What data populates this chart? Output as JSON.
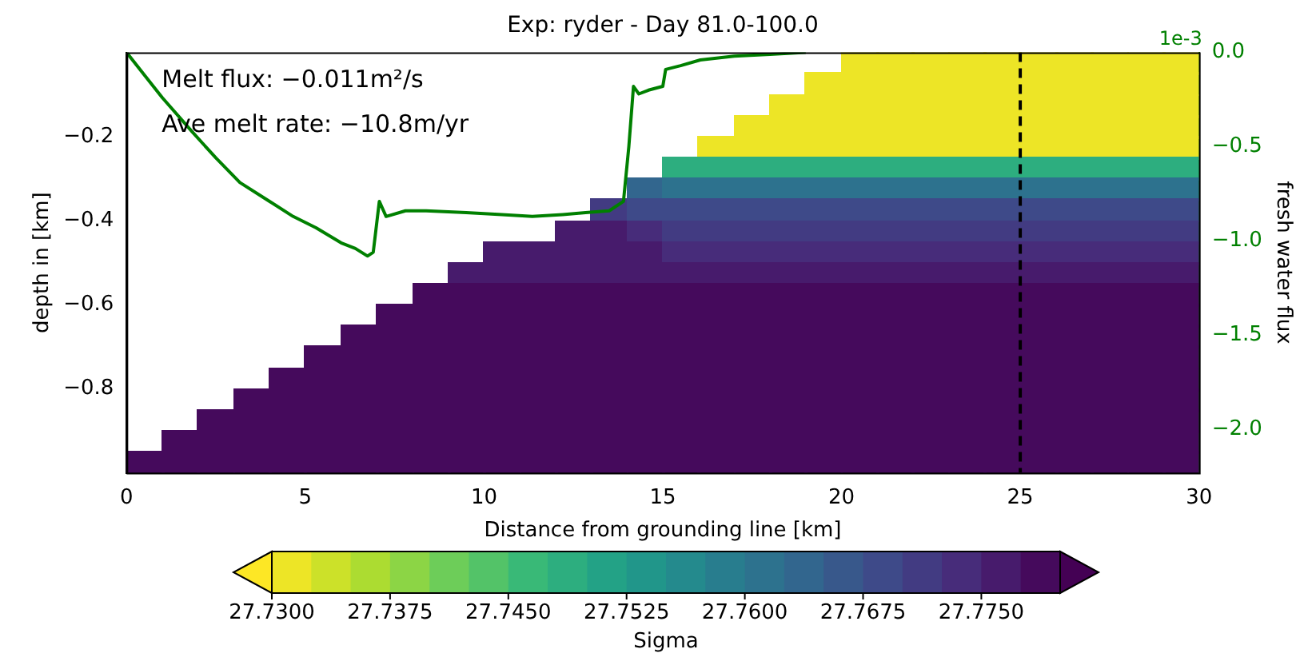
{
  "chart_data": {
    "type": "heatmap",
    "title": "Exp: ryder - Day 81.0-100.0",
    "xlabel": "Distance from grounding line [km]",
    "ylabel": "depth in [km]",
    "y2label": "fresh water flux",
    "clabel": "Sigma",
    "annotations": [
      "Melt flux: −0.011m²/s",
      "Ave melt rate: −10.8m/yr",
      "1e-3"
    ],
    "xlim": [
      0,
      30
    ],
    "xticks": [
      0,
      5,
      10,
      15,
      20,
      25,
      30
    ],
    "ylim": [
      -1.0,
      0
    ],
    "yticks": [
      {
        "value": -0.2,
        "label": "−0.2"
      },
      {
        "value": -0.4,
        "label": "−0.4"
      },
      {
        "value": -0.6,
        "label": "−0.6"
      },
      {
        "value": -0.8,
        "label": "−0.8"
      }
    ],
    "y2lim": [
      -2.23,
      0.0
    ],
    "y2ticks": [
      {
        "value": 0,
        "label": "0.0"
      },
      {
        "value": -0.5,
        "label": "−0.5"
      },
      {
        "value": -1.0,
        "label": "−1.0"
      },
      {
        "value": -1.5,
        "label": "−1.5"
      },
      {
        "value": -2.0,
        "label": "−2.0"
      }
    ],
    "clim": [
      27.73,
      27.78
    ],
    "cticks": [
      {
        "value": 27.73,
        "label": "27.7300"
      },
      {
        "value": 27.7375,
        "label": "27.7375"
      },
      {
        "value": 27.745,
        "label": "27.7450"
      },
      {
        "value": 27.7525,
        "label": "27.7525"
      },
      {
        "value": 27.76,
        "label": "27.7600"
      },
      {
        "value": 27.7675,
        "label": "27.7675"
      },
      {
        "value": 27.775,
        "label": "27.7750"
      }
    ],
    "cells": [
      [
        null,
        null,
        null,
        null,
        null,
        null,
        null,
        null,
        null,
        null,
        null,
        null,
        null,
        null,
        null,
        null,
        null,
        null,
        null,
        null,
        27.73,
        27.73,
        27.73,
        27.73,
        27.73,
        27.73,
        27.73,
        27.73,
        27.73,
        27.73
      ],
      [
        null,
        null,
        null,
        null,
        null,
        null,
        null,
        null,
        null,
        null,
        null,
        null,
        null,
        null,
        null,
        null,
        null,
        null,
        null,
        27.73,
        27.73,
        27.73,
        27.73,
        27.73,
        27.73,
        27.73,
        27.73,
        27.73,
        27.73,
        27.73
      ],
      [
        null,
        null,
        null,
        null,
        null,
        null,
        null,
        null,
        null,
        null,
        null,
        null,
        null,
        null,
        null,
        null,
        null,
        null,
        27.73,
        27.73,
        27.73,
        27.73,
        27.73,
        27.73,
        27.73,
        27.73,
        27.73,
        27.73,
        27.73,
        27.73
      ],
      [
        null,
        null,
        null,
        null,
        null,
        null,
        null,
        null,
        null,
        null,
        null,
        null,
        null,
        null,
        null,
        null,
        null,
        27.73,
        27.73,
        27.73,
        27.73,
        27.73,
        27.73,
        27.73,
        27.73,
        27.73,
        27.73,
        27.73,
        27.73,
        27.73
      ],
      [
        null,
        null,
        null,
        null,
        null,
        null,
        null,
        null,
        null,
        null,
        null,
        null,
        null,
        null,
        null,
        null,
        27.73,
        27.73,
        27.73,
        27.73,
        27.73,
        27.73,
        27.73,
        27.73,
        27.73,
        27.73,
        27.73,
        27.73,
        27.73,
        27.73
      ],
      [
        null,
        null,
        null,
        null,
        null,
        null,
        null,
        null,
        null,
        null,
        null,
        null,
        null,
        null,
        null,
        27.75,
        27.75,
        27.75,
        27.75,
        27.75,
        27.75,
        27.75,
        27.75,
        27.75,
        27.75,
        27.75,
        27.75,
        27.75,
        27.75,
        27.75
      ],
      [
        null,
        null,
        null,
        null,
        null,
        null,
        null,
        null,
        null,
        null,
        null,
        null,
        null,
        null,
        27.765,
        27.76,
        27.76,
        27.76,
        27.76,
        27.76,
        27.76,
        27.76,
        27.76,
        27.76,
        27.76,
        27.76,
        27.76,
        27.76,
        27.76,
        27.76
      ],
      [
        null,
        null,
        null,
        null,
        null,
        null,
        null,
        null,
        null,
        null,
        null,
        null,
        null,
        27.772,
        27.77,
        27.768,
        27.768,
        27.768,
        27.768,
        27.768,
        27.768,
        27.768,
        27.768,
        27.768,
        27.768,
        27.768,
        27.768,
        27.768,
        27.768,
        27.768
      ],
      [
        null,
        null,
        null,
        null,
        null,
        null,
        null,
        null,
        null,
        null,
        null,
        null,
        27.777,
        27.776,
        27.774,
        27.772,
        27.772,
        27.772,
        27.772,
        27.772,
        27.772,
        27.772,
        27.772,
        27.772,
        27.772,
        27.772,
        27.772,
        27.772,
        27.772,
        27.772
      ],
      [
        null,
        null,
        null,
        null,
        null,
        null,
        null,
        null,
        null,
        null,
        27.777,
        27.777,
        27.777,
        27.777,
        27.777,
        27.775,
        27.775,
        27.775,
        27.775,
        27.775,
        27.775,
        27.775,
        27.775,
        27.775,
        27.775,
        27.775,
        27.775,
        27.775,
        27.775,
        27.775
      ],
      [
        null,
        null,
        null,
        null,
        null,
        null,
        null,
        null,
        null,
        27.777,
        27.777,
        27.777,
        27.777,
        27.777,
        27.777,
        27.777,
        27.777,
        27.777,
        27.777,
        27.777,
        27.777,
        27.777,
        27.777,
        27.777,
        27.777,
        27.777,
        27.777,
        27.777,
        27.777,
        27.777
      ],
      [
        null,
        null,
        null,
        null,
        null,
        null,
        null,
        null,
        27.779,
        27.779,
        27.779,
        27.779,
        27.779,
        27.779,
        27.779,
        27.778,
        27.778,
        27.778,
        27.778,
        27.778,
        27.778,
        27.778,
        27.778,
        27.778,
        27.778,
        27.778,
        27.778,
        27.778,
        27.778,
        27.778
      ],
      [
        null,
        null,
        null,
        null,
        null,
        null,
        null,
        27.779,
        27.779,
        27.779,
        27.779,
        27.779,
        27.779,
        27.779,
        27.779,
        27.779,
        27.779,
        27.779,
        27.779,
        27.779,
        27.779,
        27.779,
        27.779,
        27.779,
        27.779,
        27.779,
        27.779,
        27.779,
        27.779,
        27.779
      ],
      [
        null,
        null,
        null,
        null,
        null,
        null,
        27.779,
        27.779,
        27.779,
        27.779,
        27.779,
        27.779,
        27.779,
        27.779,
        27.779,
        27.779,
        27.779,
        27.779,
        27.779,
        27.779,
        27.779,
        27.779,
        27.779,
        27.779,
        27.779,
        27.779,
        27.779,
        27.779,
        27.779,
        27.779
      ],
      [
        null,
        null,
        null,
        null,
        null,
        27.779,
        27.779,
        27.779,
        27.779,
        27.779,
        27.779,
        27.779,
        27.779,
        27.779,
        27.779,
        27.779,
        27.779,
        27.779,
        27.779,
        27.779,
        27.779,
        27.779,
        27.779,
        27.779,
        27.779,
        27.779,
        27.779,
        27.779,
        27.779,
        27.779
      ],
      [
        null,
        null,
        null,
        null,
        27.779,
        27.779,
        27.779,
        27.779,
        27.779,
        27.779,
        27.779,
        27.779,
        27.779,
        27.779,
        27.779,
        27.779,
        27.779,
        27.779,
        27.779,
        27.779,
        27.779,
        27.779,
        27.779,
        27.779,
        27.779,
        27.779,
        27.779,
        27.779,
        27.779,
        27.779
      ],
      [
        null,
        null,
        null,
        27.779,
        27.779,
        27.779,
        27.779,
        27.779,
        27.779,
        27.779,
        27.779,
        27.779,
        27.779,
        27.779,
        27.779,
        27.779,
        27.779,
        27.779,
        27.779,
        27.779,
        27.779,
        27.779,
        27.779,
        27.779,
        27.779,
        27.779,
        27.779,
        27.779,
        27.779,
        27.779
      ],
      [
        null,
        null,
        27.779,
        27.779,
        27.779,
        27.779,
        27.779,
        27.779,
        27.779,
        27.779,
        27.779,
        27.779,
        27.779,
        27.779,
        27.779,
        27.779,
        27.779,
        27.779,
        27.779,
        27.779,
        27.779,
        27.779,
        27.779,
        27.779,
        27.779,
        27.779,
        27.779,
        27.779,
        27.779,
        27.779
      ],
      [
        null,
        27.779,
        27.779,
        27.779,
        27.779,
        27.779,
        27.779,
        27.779,
        27.779,
        27.779,
        27.779,
        27.779,
        27.779,
        27.779,
        27.779,
        27.779,
        27.779,
        27.779,
        27.779,
        27.779,
        27.779,
        27.779,
        27.779,
        27.779,
        27.779,
        27.779,
        27.779,
        27.779,
        27.779,
        27.779
      ],
      [
        27.779,
        27.779,
        27.779,
        27.779,
        27.779,
        27.779,
        27.779,
        27.779,
        27.779,
        27.779,
        27.779,
        27.779,
        27.779,
        27.779,
        27.779,
        27.779,
        27.779,
        27.779,
        27.779,
        27.779,
        27.779,
        27.779,
        27.779,
        27.779,
        27.779,
        27.779,
        27.779,
        27.779,
        27.779,
        27.779
      ]
    ],
    "series": [
      {
        "type": "line",
        "axis": "y2",
        "color": "#008000",
        "x": [
          0,
          0.5,
          1.0,
          1.83,
          2.5,
          3.17,
          4.0,
          4.66,
          5.3,
          6.0,
          6.4,
          6.74,
          6.9,
          7.07,
          7.26,
          7.8,
          8.38,
          9.5,
          10.5,
          11.35,
          12.2,
          12.84,
          13.5,
          13.9,
          14.05,
          14.18,
          14.33,
          14.6,
          15.0,
          15.08,
          15.5,
          16.05,
          17.0,
          18.0,
          19.0
        ],
        "values": [
          0.0,
          -0.12,
          -0.24,
          -0.42,
          -0.56,
          -0.69,
          -0.79,
          -0.87,
          -0.93,
          -1.01,
          -1.04,
          -1.08,
          -1.06,
          -0.79,
          -0.87,
          -0.84,
          -0.84,
          -0.85,
          -0.86,
          -0.87,
          -0.86,
          -0.85,
          -0.84,
          -0.79,
          -0.5,
          -0.18,
          -0.22,
          -0.2,
          -0.18,
          -0.09,
          -0.07,
          -0.04,
          -0.02,
          -0.01,
          0.0
        ]
      }
    ],
    "ref_lines": [
      {
        "axis": "x",
        "value": 25,
        "color": "#000000",
        "line_style": "dashed"
      }
    ],
    "grid": false,
    "legend": false
  }
}
